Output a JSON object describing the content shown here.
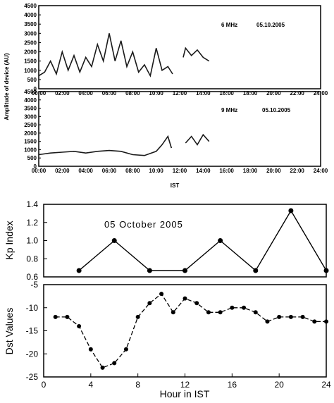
{
  "chart_data": [
    {
      "type": "line",
      "annotation_freq": "6 MHz",
      "annotation_date": "05.10.2005",
      "ylabel": "Amplitude of device (AU)",
      "ylim": [
        0,
        4500
      ],
      "yticks": [
        "0",
        "500",
        "1000",
        "1500",
        "2000",
        "2500",
        "3000",
        "3500",
        "4000",
        "4500"
      ],
      "xticks": [
        "00:00",
        "02:00",
        "04:00",
        "06:00",
        "08:00",
        "10:00",
        "12:00",
        "14:00",
        "16:00",
        "18:00",
        "20:00",
        "22:00",
        "24:00"
      ],
      "xlim": [
        0,
        24
      ],
      "series": [
        {
          "x": [
            0,
            0.5,
            1,
            1.5,
            2,
            2.5,
            3,
            3.5,
            4,
            4.5,
            5,
            5.5,
            6,
            6.5,
            7,
            7.5,
            8,
            8.5,
            9,
            9.5,
            10,
            10.5,
            11,
            11.4
          ],
          "values": [
            700,
            900,
            1500,
            800,
            2000,
            1000,
            1800,
            900,
            1700,
            1200,
            2400,
            1500,
            3000,
            1500,
            2600,
            1200,
            2000,
            900,
            1300,
            700,
            2200,
            1000,
            1200,
            800
          ]
        },
        {
          "x": [
            12.3,
            12.5,
            13,
            13.5,
            14,
            14.5
          ],
          "values": [
            1700,
            2200,
            1800,
            2100,
            1700,
            1500
          ]
        }
      ]
    },
    {
      "type": "line",
      "annotation_freq": "9 MHz",
      "annotation_date": "05.10.2005",
      "xlabel": "IST",
      "ylim": [
        0,
        4500
      ],
      "yticks": [
        "0",
        "500",
        "1000",
        "1500",
        "2000",
        "2500",
        "3000",
        "3500",
        "4000",
        "4500"
      ],
      "xticks": [
        "00:00",
        "02:00",
        "04:00",
        "06:00",
        "08:00",
        "10:00",
        "12:00",
        "14:00",
        "16:00",
        "18:00",
        "20:00",
        "22:00",
        "24:00"
      ],
      "xlim": [
        0,
        24
      ],
      "series": [
        {
          "x": [
            0,
            1,
            2,
            3,
            4,
            5,
            6,
            7,
            8,
            9,
            10,
            10.5,
            11,
            11.3
          ],
          "values": [
            700,
            800,
            850,
            900,
            800,
            900,
            950,
            900,
            700,
            650,
            900,
            1300,
            1800,
            1100
          ]
        },
        {
          "x": [
            12.5,
            13,
            13.5,
            14,
            14.5
          ],
          "values": [
            1400,
            1800,
            1300,
            1900,
            1500
          ]
        }
      ]
    },
    {
      "type": "line",
      "ylabel": "Kp Index",
      "annotation": "05 October 2005",
      "xlim": [
        0,
        24
      ],
      "ylim": [
        0.6,
        1.4
      ],
      "yticks": [
        "0.6",
        "0.8",
        "1.0",
        "1.2",
        "1.4"
      ],
      "x": [
        3,
        6,
        9,
        12,
        15,
        18,
        21,
        24
      ],
      "values": [
        0.67,
        1.0,
        0.67,
        0.67,
        1.0,
        0.67,
        1.33,
        0.67
      ]
    },
    {
      "type": "line",
      "ylabel": "Dst Values",
      "xlabel": "Hour in IST",
      "xlim": [
        0,
        24
      ],
      "ylim": [
        -25,
        -5
      ],
      "yticks": [
        "-5",
        "-10",
        "-15",
        "-20",
        "-25"
      ],
      "xticks": [
        "0",
        "4",
        "8",
        "12",
        "16",
        "20",
        "24"
      ],
      "x": [
        1,
        2,
        3,
        4,
        5,
        6,
        7,
        8,
        9,
        10,
        11,
        12,
        13,
        14,
        15,
        16,
        17,
        18,
        19,
        20,
        21,
        22,
        23,
        24
      ],
      "values": [
        -12,
        -12,
        -14,
        -19,
        -23,
        -22,
        -19,
        -12,
        -9,
        -7,
        -11,
        -8,
        -9,
        -11,
        -11,
        -10,
        -10,
        -11,
        -13,
        -12,
        -12,
        -12,
        -13,
        -13
      ]
    }
  ]
}
